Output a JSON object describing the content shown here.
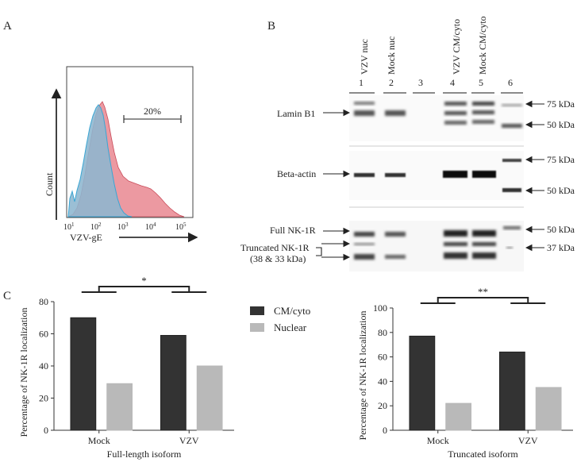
{
  "panels": {
    "a": "A",
    "b": "B",
    "c": "C"
  },
  "flow": {
    "gate_pct": "20%",
    "ylabel": "Count",
    "xlabel": "VZV-gE",
    "ticks": [
      "10",
      "10",
      "10",
      "10",
      "10"
    ],
    "exps": [
      "1",
      "2",
      "3",
      "4",
      "5"
    ],
    "colors": {
      "vzv": "#e98791",
      "mock": "#8db6cf"
    }
  },
  "blot": {
    "lanes": [
      "VZV nuc",
      "Mock nuc",
      "VZV CM/cyto",
      "Mock CM/cyto"
    ],
    "lane_numbers": [
      "1",
      "2",
      "3",
      "4",
      "5",
      "6"
    ],
    "rows": {
      "lamin": "Lamin B1",
      "actin": "Beta-actin",
      "full": "Full NK-1R",
      "trunc1": "Truncated NK-1R",
      "trunc2": "(38 & 33 kDa)"
    },
    "markers": {
      "m75a": "75 kDa",
      "m50a": "50 kDa",
      "m75b": "75 kDa",
      "m50b": "50 kDa",
      "m50c": "50 kDa",
      "m37": "37 kDa"
    }
  },
  "legend": {
    "cm": "CM/cyto",
    "nuc": "Nuclear"
  },
  "colors": {
    "cm": "#333333",
    "nuc": "#b9b9b9"
  },
  "chart_data": [
    {
      "type": "bar",
      "title": "",
      "xlabel": "Full-length isoform",
      "ylabel": "Percentage of NK-1R localization",
      "categories": [
        "Mock",
        "VZV"
      ],
      "series": [
        {
          "name": "CM/cyto",
          "values": [
            70,
            59
          ]
        },
        {
          "name": "Nuclear",
          "values": [
            29,
            40
          ]
        }
      ],
      "ylim": [
        0,
        80
      ],
      "yticks": [
        0,
        20,
        40,
        60,
        80
      ],
      "significance": "*"
    },
    {
      "type": "bar",
      "title": "",
      "xlabel": "Truncated isoform",
      "ylabel": "Percentage of NK-1R localization",
      "categories": [
        "Mock",
        "VZV"
      ],
      "series": [
        {
          "name": "CM/cyto",
          "values": [
            77,
            64
          ]
        },
        {
          "name": "Nuclear",
          "values": [
            22,
            35
          ]
        }
      ],
      "ylim": [
        0,
        100
      ],
      "yticks": [
        0,
        20,
        40,
        60,
        80,
        100
      ],
      "significance": "**"
    }
  ]
}
